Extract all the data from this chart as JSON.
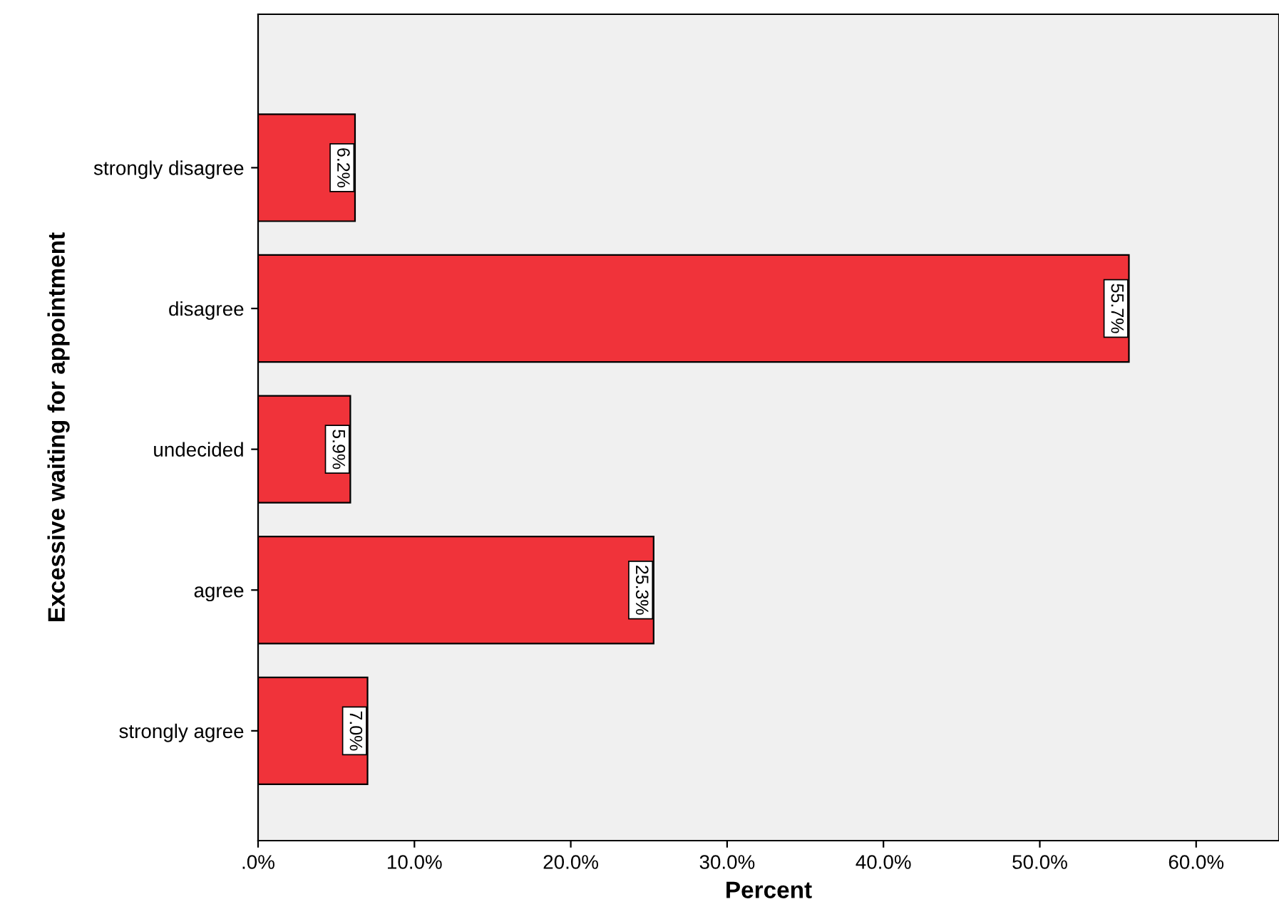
{
  "chart_data": {
    "type": "bar",
    "orientation": "horizontal",
    "xlabel": "Percent",
    "ylabel": "Excessive waiting for appointment",
    "categories": [
      "strongly disagree",
      "disagree",
      "undecided",
      "agree",
      "strongly agree"
    ],
    "values": [
      6.2,
      55.7,
      5.9,
      25.3,
      7.0
    ],
    "color": "#f0333a",
    "value_labels": [
      "6.2%",
      "55.7%",
      "5.9%",
      "25.3%",
      "7.0%"
    ],
    "xlim": [
      0,
      65.3
    ],
    "xticks": [
      {
        "value": 0,
        "label": ".0%"
      },
      {
        "value": 10,
        "label": "10.0%"
      },
      {
        "value": 20,
        "label": "20.0%"
      },
      {
        "value": 30,
        "label": "30.0%"
      },
      {
        "value": 40,
        "label": "40.0%"
      },
      {
        "value": 50,
        "label": "50.0%"
      },
      {
        "value": 60,
        "label": "60.0%"
      }
    ],
    "grid": false,
    "legend": false
  }
}
